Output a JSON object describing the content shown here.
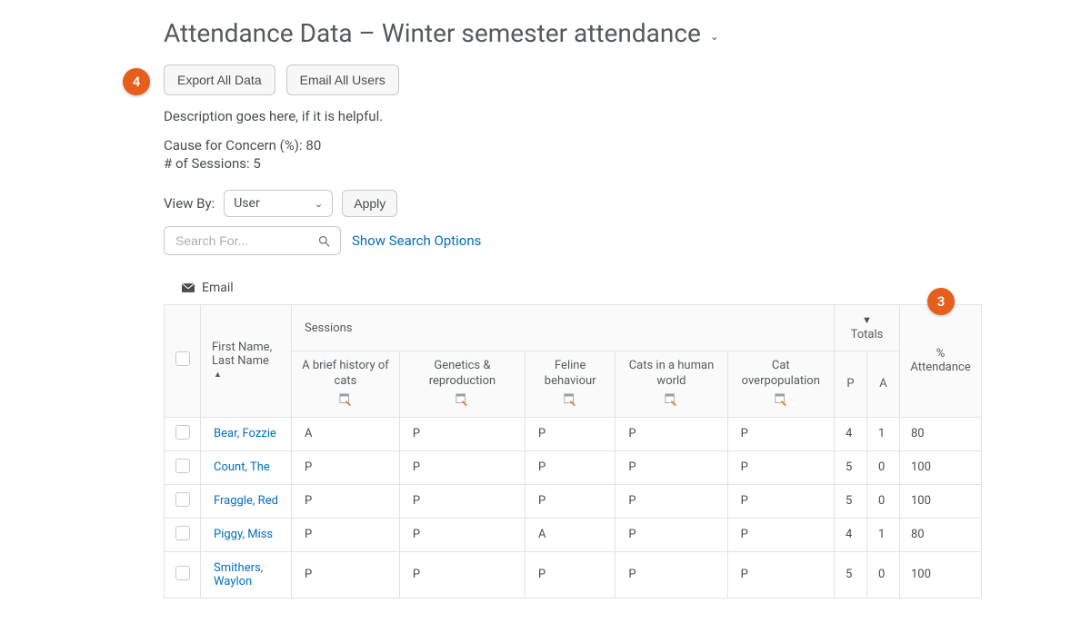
{
  "header": {
    "title": "Attendance Data – Winter semester attendance"
  },
  "callouts": {
    "c3": "3",
    "c4": "4"
  },
  "toolbar": {
    "export_label": "Export All Data",
    "email_all_label": "Email All Users"
  },
  "description": "Description goes here, if it is helpful.",
  "meta": {
    "concern_label": "Cause for Concern (%):",
    "concern_value": "80",
    "sessions_label": "# of Sessions:",
    "sessions_value": "5"
  },
  "viewby": {
    "label": "View By:",
    "selected": "User",
    "apply_label": "Apply"
  },
  "search": {
    "placeholder": "Search For...",
    "options_link": "Show Search Options"
  },
  "actions": {
    "email_label": "Email"
  },
  "table": {
    "name_header_line1": "First Name,",
    "name_header_line2": "Last Name",
    "sessions_header": "Sessions",
    "totals_header": "Totals",
    "pct_header_line1": "%",
    "pct_header_line2": "Attendance",
    "p_label": "P",
    "a_label": "A",
    "sessions": [
      "A brief history of cats",
      "Genetics & reproduction",
      "Feline behaviour",
      "Cats in a human world",
      "Cat overpopulation"
    ],
    "rows": [
      {
        "name": "Bear, Fozzie",
        "marks": [
          "A",
          "P",
          "P",
          "P",
          "P"
        ],
        "p": 4,
        "a": 1,
        "pct": 80
      },
      {
        "name": "Count, The",
        "marks": [
          "P",
          "P",
          "P",
          "P",
          "P"
        ],
        "p": 5,
        "a": 0,
        "pct": 100
      },
      {
        "name": "Fraggle, Red",
        "marks": [
          "P",
          "P",
          "P",
          "P",
          "P"
        ],
        "p": 5,
        "a": 0,
        "pct": 100
      },
      {
        "name": "Piggy, Miss",
        "marks": [
          "P",
          "P",
          "A",
          "P",
          "P"
        ],
        "p": 4,
        "a": 1,
        "pct": 80
      },
      {
        "name": "Smithers, Waylon",
        "marks": [
          "P",
          "P",
          "P",
          "P",
          "P"
        ],
        "p": 5,
        "a": 0,
        "pct": 100
      }
    ]
  },
  "colors": {
    "accent": "#e55e1c",
    "link": "#006fbf",
    "border": "#dcdcdc",
    "text": "#494c4e"
  }
}
